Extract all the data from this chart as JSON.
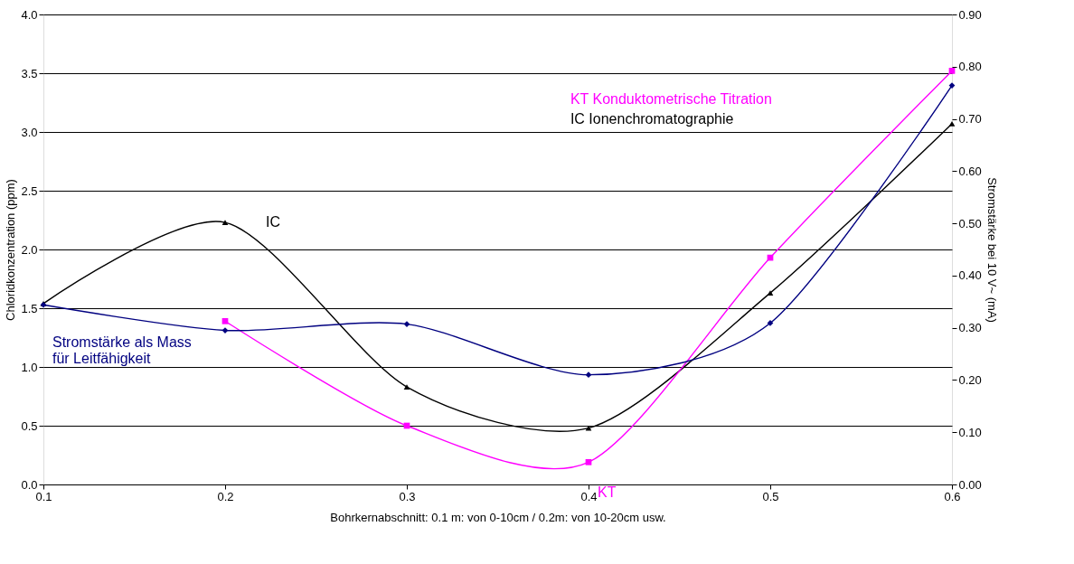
{
  "chart_data": {
    "type": "line",
    "xlabel": "Bohrkernabschnitt: 0.1 m: von 0-10cm / 0.2m: von 10-20cm usw.",
    "ylabel": "Chloridkonzentration (ppm)",
    "y2label": "Stromstärke bei 10 V~ (mA)",
    "series": [
      {
        "name": "IC",
        "color": "#000000",
        "marker": "triangle",
        "x": [
          0.1,
          0.2,
          0.3,
          0.4,
          0.5,
          0.6
        ],
        "values": [
          1.54,
          2.23,
          0.83,
          0.48,
          1.63,
          3.07
        ]
      },
      {
        "name": "KT",
        "color": "#ff00ff",
        "marker": "square",
        "x": [
          0.2,
          0.3,
          0.4,
          0.5,
          0.6
        ],
        "values": [
          1.39,
          0.5,
          0.19,
          1.93,
          3.52
        ]
      },
      {
        "name": "Stromstärke als Mass\nfür Leitfähigkeit",
        "color": "#000080",
        "marker": "diamond",
        "axis": "y2",
        "x": [
          0.1,
          0.2,
          0.3,
          0.4,
          0.5,
          0.6
        ],
        "values": [
          0.344,
          0.295,
          0.307,
          0.21,
          0.309,
          0.764
        ]
      }
    ],
    "xlim": [
      0.1,
      0.6
    ],
    "xticks": [
      0.1,
      0.2,
      0.3,
      0.4,
      0.5,
      0.6
    ],
    "ylim": [
      0,
      4
    ],
    "yticks": [
      {
        "value": 0,
        "label": "0.0"
      },
      0.5,
      {
        "value": 1,
        "label": "1.0"
      },
      1.5,
      {
        "value": 2,
        "label": "2.0"
      },
      2.5,
      {
        "value": 3,
        "label": "3.0"
      },
      3.5,
      {
        "value": 4,
        "label": "4.0"
      }
    ],
    "y2lim": [
      0,
      0.9
    ],
    "y2ticks": [
      {
        "value": 0,
        "label": "0.00"
      },
      {
        "value": 0.1,
        "label": "0.10"
      },
      {
        "value": 0.2,
        "label": "0.20"
      },
      {
        "value": 0.3,
        "label": "0.30"
      },
      {
        "value": 0.4,
        "label": "0.40"
      },
      {
        "value": 0.5,
        "label": "0.50"
      },
      {
        "value": 0.6,
        "label": "0.60"
      },
      {
        "value": 0.7,
        "label": "0.70"
      },
      {
        "value": 0.8,
        "label": "0.80"
      },
      {
        "value": 0.9,
        "label": "0.90"
      }
    ],
    "annotations": [
      "KT   Konduktometrische Titration",
      "IC    Ionenchromatographie"
    ],
    "grid": "y",
    "line_style": "solid"
  }
}
